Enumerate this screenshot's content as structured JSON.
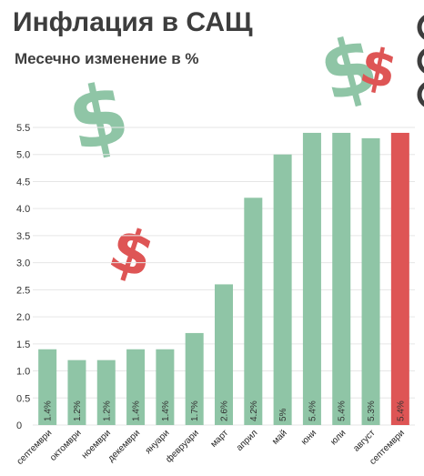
{
  "chart_data": {
    "type": "bar",
    "title": "Инфлация в САЩ",
    "subtitle": "Месечно изменение в %",
    "categories": [
      "септември",
      "октомври",
      "ноември",
      "декември",
      "януари",
      "февруари",
      "март",
      "април",
      "май",
      "юни",
      "юли",
      "август",
      "септември"
    ],
    "values": [
      1.4,
      1.2,
      1.2,
      1.4,
      1.4,
      1.7,
      2.6,
      4.2,
      5.0,
      5.4,
      5.4,
      5.3,
      5.4
    ],
    "data_labels": [
      "1.4%",
      "1.2%",
      "1.2%",
      "1.4%",
      "1.4%",
      "1.7%",
      "2.6%",
      "4.2%",
      "5%",
      "5.4%",
      "5.4%",
      "5.3%",
      "5.4%"
    ],
    "yticks": [
      "0",
      "0.5",
      "1.0",
      "1.5",
      "2.0",
      "2.5",
      "3.0",
      "3.5",
      "4.0",
      "4.5",
      "5.0",
      "5.5"
    ],
    "ylim": [
      0,
      5.5
    ],
    "grid": true,
    "colors": {
      "default": "#8fc5a6",
      "highlight": "#de5555",
      "highlight_index": 12
    }
  },
  "decorations": {
    "dollar_glyph": "$",
    "green": "#8fc5a6",
    "red": "#de5555"
  }
}
